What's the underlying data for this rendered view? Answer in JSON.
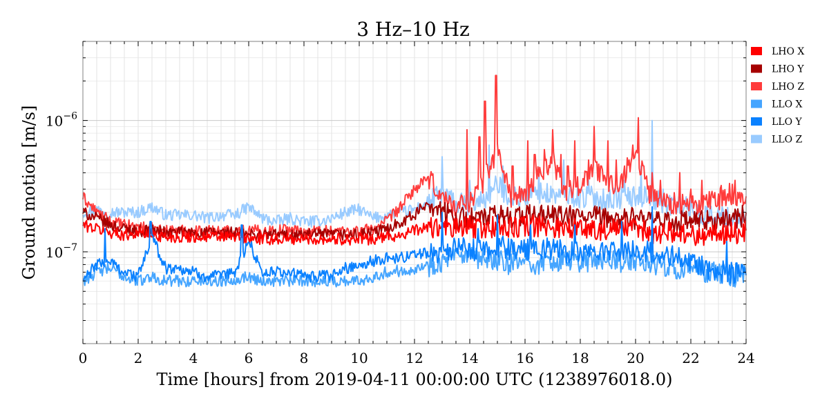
{
  "chart_data": {
    "type": "line",
    "title": "3 Hz–10 Hz",
    "xlabel": "Time [hours] from 2019-04-11 00:00:00 UTC (1238976018.0)",
    "ylabel": "Ground motion [m/s]",
    "xlim": [
      0,
      24
    ],
    "ylim": [
      2e-08,
      4e-06
    ],
    "yscale": "log",
    "grid": true,
    "legend_position": "outside-right-top",
    "x_ticks": [
      0,
      2,
      4,
      6,
      8,
      10,
      12,
      14,
      16,
      18,
      20,
      22,
      24
    ],
    "x_tick_labels": [
      "0",
      "2",
      "4",
      "6",
      "8",
      "10",
      "12",
      "14",
      "16",
      "18",
      "20",
      "22",
      "24"
    ],
    "y_ticks": [
      {
        "value": 1e-07,
        "base": "10",
        "exp": "−7"
      },
      {
        "value": 1e-06,
        "base": "10",
        "exp": "−6"
      }
    ],
    "series": [
      {
        "name": "LHO X",
        "color": "#ff0000",
        "x": [
          0,
          0.5,
          1,
          1.5,
          2,
          2.5,
          3,
          3.5,
          4,
          4.5,
          5,
          5.5,
          6,
          6.5,
          7,
          7.5,
          8,
          8.5,
          9,
          9.5,
          10,
          10.5,
          11,
          11.5,
          12,
          12.5,
          13,
          13.5,
          14,
          14.5,
          15,
          15.5,
          16,
          16.5,
          17,
          17.5,
          18,
          18.5,
          19,
          19.5,
          20,
          20.5,
          21,
          21.5,
          22,
          22.5,
          23,
          23.5,
          24
        ],
        "values": [
          1.6e-07,
          1.5e-07,
          1.4e-07,
          1.35e-07,
          1.4e-07,
          1.35e-07,
          1.3e-07,
          1.3e-07,
          1.3e-07,
          1.3e-07,
          1.3e-07,
          1.3e-07,
          1.25e-07,
          1.25e-07,
          1.25e-07,
          1.25e-07,
          1.25e-07,
          1.25e-07,
          1.25e-07,
          1.25e-07,
          1.25e-07,
          1.25e-07,
          1.3e-07,
          1.35e-07,
          1.45e-07,
          1.55e-07,
          1.5e-07,
          1.5e-07,
          1.55e-07,
          1.5e-07,
          1.55e-07,
          1.5e-07,
          1.6e-07,
          1.55e-07,
          1.55e-07,
          1.55e-07,
          1.5e-07,
          1.5e-07,
          1.45e-07,
          1.5e-07,
          1.5e-07,
          1.4e-07,
          1.4e-07,
          1.4e-07,
          1.35e-07,
          1.35e-07,
          1.35e-07,
          1.4e-07,
          1.4e-07
        ]
      },
      {
        "name": "LHO Y",
        "color": "#a60000",
        "x": [
          0,
          0.5,
          1,
          1.5,
          2,
          2.5,
          3,
          3.5,
          4,
          4.5,
          5,
          5.5,
          6,
          6.5,
          7,
          7.5,
          8,
          8.5,
          9,
          9.5,
          10,
          10.5,
          11,
          11.5,
          12,
          12.5,
          13,
          13.5,
          14,
          14.5,
          15,
          15.5,
          16,
          16.5,
          17,
          17.5,
          18,
          18.5,
          19,
          19.5,
          20,
          20.5,
          21,
          21.5,
          22,
          22.5,
          23,
          23.5,
          24
        ],
        "values": [
          2e-07,
          1.8e-07,
          1.6e-07,
          1.5e-07,
          1.45e-07,
          1.45e-07,
          1.4e-07,
          1.4e-07,
          1.4e-07,
          1.4e-07,
          1.4e-07,
          1.4e-07,
          1.35e-07,
          1.35e-07,
          1.35e-07,
          1.35e-07,
          1.35e-07,
          1.35e-07,
          1.35e-07,
          1.35e-07,
          1.35e-07,
          1.4e-07,
          1.5e-07,
          1.7e-07,
          1.9e-07,
          2.4e-07,
          2e-07,
          1.8e-07,
          1.8e-07,
          1.8e-07,
          1.9e-07,
          1.85e-07,
          1.9e-07,
          1.9e-07,
          1.9e-07,
          1.85e-07,
          1.85e-07,
          1.85e-07,
          1.8e-07,
          1.8e-07,
          1.8e-07,
          1.7e-07,
          1.7e-07,
          1.7e-07,
          1.7e-07,
          1.7e-07,
          1.7e-07,
          1.8e-07,
          1.9e-07
        ]
      },
      {
        "name": "LHO Z",
        "color": "#ff3c3c",
        "x": [
          0,
          0.5,
          1,
          1.5,
          2,
          2.5,
          3,
          3.5,
          4,
          4.5,
          5,
          5.5,
          6,
          6.5,
          7,
          7.5,
          8,
          8.5,
          9,
          9.5,
          10,
          10.5,
          11,
          11.5,
          12,
          12.5,
          13,
          13.5,
          14,
          14.5,
          15,
          15.5,
          16,
          16.5,
          17,
          17.5,
          18,
          18.5,
          19,
          19.5,
          20,
          20.5,
          21,
          21.5,
          22,
          22.5,
          23,
          23.5,
          24
        ],
        "values": [
          2.6e-07,
          2e-07,
          1.7e-07,
          1.6e-07,
          1.55e-07,
          1.5e-07,
          1.45e-07,
          1.45e-07,
          1.45e-07,
          1.45e-07,
          1.45e-07,
          1.45e-07,
          1.45e-07,
          1.45e-07,
          1.45e-07,
          1.5e-07,
          1.4e-07,
          1.45e-07,
          1.45e-07,
          1.45e-07,
          1.45e-07,
          1.5e-07,
          1.7e-07,
          2.2e-07,
          3e-07,
          3.6e-07,
          2.6e-07,
          2.2e-07,
          2.4e-07,
          3.5e-07,
          6e-07,
          2.6e-07,
          2.6e-07,
          4e-07,
          5e-07,
          2.8e-07,
          3.3e-07,
          4.5e-07,
          3.2e-07,
          3.5e-07,
          6e-07,
          2.8e-07,
          2.5e-07,
          2.3e-07,
          2.2e-07,
          2.3e-07,
          2.5e-07,
          2.8e-07,
          2.5e-07
        ]
      },
      {
        "name": "LLO X",
        "color": "#45a5ff",
        "x": [
          0,
          0.5,
          1,
          1.5,
          2,
          2.5,
          3,
          3.5,
          4,
          4.5,
          5,
          5.5,
          6,
          6.5,
          7,
          7.5,
          8,
          8.5,
          9,
          9.5,
          10,
          10.5,
          11,
          11.5,
          12,
          12.5,
          13,
          13.5,
          14,
          14.5,
          15,
          15.5,
          16,
          16.5,
          17,
          17.5,
          18,
          18.5,
          19,
          19.5,
          20,
          20.5,
          21,
          21.5,
          22,
          22.5,
          23,
          23.5,
          24
        ],
        "values": [
          6e-08,
          7e-08,
          7.5e-08,
          6.5e-08,
          6e-08,
          6.5e-08,
          6e-08,
          6e-08,
          6e-08,
          6e-08,
          6e-08,
          6.2e-08,
          6.5e-08,
          6e-08,
          6e-08,
          6e-08,
          6e-08,
          6e-08,
          6e-08,
          6e-08,
          6e-08,
          6.5e-08,
          7e-08,
          7.2e-08,
          7.5e-08,
          7.8e-08,
          8.5e-08,
          9e-08,
          9e-08,
          8.5e-08,
          8.5e-08,
          8e-08,
          8.5e-08,
          8e-08,
          8.5e-08,
          8.5e-08,
          8.5e-08,
          8.5e-08,
          8.5e-08,
          8.5e-08,
          8.5e-08,
          8e-08,
          8e-08,
          7.5e-08,
          7.5e-08,
          7e-08,
          7e-08,
          6.5e-08,
          6.5e-08
        ]
      },
      {
        "name": "LLO Y",
        "color": "#0a81ff",
        "x": [
          0,
          0.5,
          1,
          1.5,
          2,
          2.5,
          3,
          3.5,
          4,
          4.5,
          5,
          5.5,
          6,
          6.5,
          7,
          7.5,
          8,
          8.5,
          9,
          9.5,
          10,
          10.5,
          11,
          11.5,
          12,
          12.5,
          13,
          13.5,
          14,
          14.5,
          15,
          15.5,
          16,
          16.5,
          17,
          17.5,
          18,
          18.5,
          19,
          19.5,
          20,
          20.5,
          21,
          21.5,
          22,
          22.5,
          23,
          23.5,
          24
        ],
        "values": [
          6e-08,
          8e-08,
          8.5e-08,
          7e-08,
          6.5e-08,
          1.3e-07,
          7.5e-08,
          7.5e-08,
          7e-08,
          6.5e-08,
          6.5e-08,
          7e-08,
          1.2e-07,
          7e-08,
          7e-08,
          7e-08,
          6.5e-08,
          6.5e-08,
          6.5e-08,
          7.5e-08,
          8e-08,
          8.5e-08,
          9e-08,
          9e-08,
          9.5e-08,
          1e-07,
          1e-07,
          1.05e-07,
          1.05e-07,
          1e-07,
          1.1e-07,
          1.05e-07,
          1.05e-07,
          1.05e-07,
          1.05e-07,
          1e-07,
          1e-07,
          1e-07,
          1e-07,
          1e-07,
          1e-07,
          1e-07,
          9.5e-08,
          9e-08,
          8.5e-08,
          7.5e-08,
          7e-08,
          7e-08,
          6.5e-08
        ]
      },
      {
        "name": "LLO Z",
        "color": "#99cbff",
        "x": [
          0,
          0.5,
          1,
          1.5,
          2,
          2.5,
          3,
          3.5,
          4,
          4.5,
          5,
          5.5,
          6,
          6.5,
          7,
          7.5,
          8,
          8.5,
          9,
          9.5,
          10,
          10.5,
          11,
          11.5,
          12,
          12.5,
          13,
          13.5,
          14,
          14.5,
          15,
          15.5,
          16,
          16.5,
          17,
          17.5,
          18,
          18.5,
          19,
          19.5,
          20,
          20.5,
          21,
          21.5,
          22,
          22.5,
          23,
          23.5,
          24
        ],
        "values": [
          2e-07,
          2.1e-07,
          2e-07,
          2e-07,
          2e-07,
          2.2e-07,
          1.9e-07,
          1.9e-07,
          1.9e-07,
          1.8e-07,
          1.9e-07,
          1.9e-07,
          2.2e-07,
          1.8e-07,
          1.7e-07,
          1.8e-07,
          1.7e-07,
          1.7e-07,
          1.8e-07,
          2e-07,
          2.1e-07,
          1.8e-07,
          1.9e-07,
          2e-07,
          2.1e-07,
          2.4e-07,
          2.8e-07,
          2.3e-07,
          2.3e-07,
          2.5e-07,
          3.2e-07,
          2.6e-07,
          2.6e-07,
          2.8e-07,
          2.7e-07,
          2.7e-07,
          2.6e-07,
          2.6e-07,
          2.5e-07,
          2.6e-07,
          2.6e-07,
          2.7e-07,
          2.3e-07,
          2.3e-07,
          2.1e-07,
          1.9e-07,
          1.9e-07,
          1.8e-07,
          1.8e-07
        ]
      }
    ],
    "spikes": [
      {
        "series": "LHO Z",
        "x": [
          13.9,
          14.35,
          14.55,
          14.95,
          15.55,
          16.1,
          16.35,
          16.7,
          17.0,
          17.3,
          17.55,
          17.8,
          18.3,
          18.5,
          18.75,
          19.0,
          19.3,
          19.6,
          19.9,
          20.1,
          20.3,
          20.6,
          20.9,
          21.6,
          22.0,
          22.4,
          22.8,
          23.1,
          23.6
        ],
        "values": [
          8.5e-07,
          7.5e-07,
          1.4e-06,
          2.2e-06,
          4.5e-07,
          7e-07,
          5.5e-07,
          6e-07,
          8.5e-07,
          5.5e-07,
          4.5e-07,
          7e-07,
          5e-07,
          9e-07,
          4.5e-07,
          7e-07,
          5e-07,
          4.5e-07,
          6.5e-07,
          1.05e-06,
          4.5e-07,
          4e-07,
          3.5e-07,
          4e-07,
          3e-07,
          3.5e-07,
          2.6e-07,
          3.2e-07,
          3.5e-07
        ]
      },
      {
        "series": "LLO Z",
        "x": [
          13.0,
          14.0,
          14.7,
          15.2,
          16.5,
          17.4,
          18.3,
          19.6,
          20.2,
          20.6,
          21.0
        ],
        "values": [
          5.3e-07,
          3.5e-07,
          6.5e-07,
          4.5e-07,
          4e-07,
          5e-07,
          3.5e-07,
          3.5e-07,
          4.5e-07,
          1e-06,
          3e-07
        ]
      },
      {
        "series": "LLO Y",
        "x": [
          0.8,
          2.45,
          5.75,
          13.0,
          14.3,
          15.0,
          16.2,
          17.8,
          19.5,
          20.6,
          23.3
        ],
        "values": [
          1.5e-07,
          1.7e-07,
          1.6e-07,
          2e-07,
          1.5e-07,
          1.9e-07,
          1.6e-07,
          1.6e-07,
          1.7e-07,
          2.2e-07,
          1.2e-07
        ]
      }
    ]
  }
}
